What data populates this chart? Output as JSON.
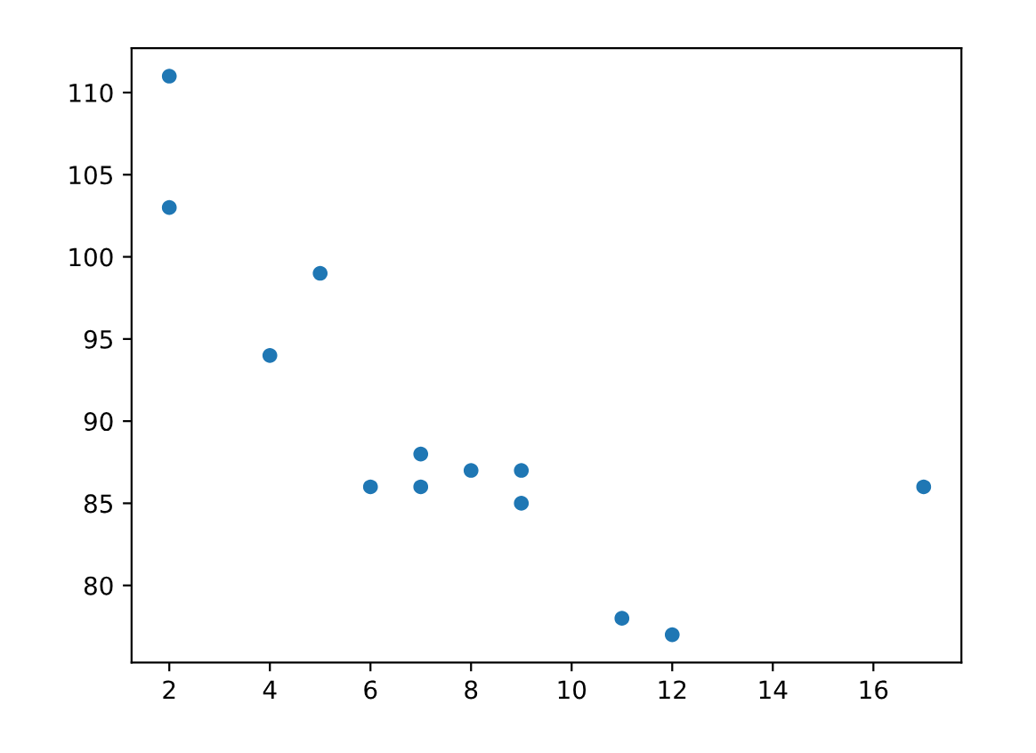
{
  "chart_data": {
    "type": "scatter",
    "x": [
      5,
      7,
      8,
      7,
      2,
      17,
      2,
      9,
      4,
      11,
      12,
      9,
      6
    ],
    "values": [
      99,
      86,
      87,
      88,
      111,
      86,
      103,
      87,
      94,
      78,
      77,
      85,
      86
    ],
    "color": "#1f77b4",
    "marker": "circle",
    "xlim": [
      1.25,
      17.75
    ],
    "ylim": [
      75.3,
      112.7
    ],
    "xticks": [
      2,
      4,
      6,
      8,
      10,
      12,
      14,
      16
    ],
    "yticks": [
      80,
      85,
      90,
      95,
      100,
      105,
      110
    ],
    "grid": false
  }
}
